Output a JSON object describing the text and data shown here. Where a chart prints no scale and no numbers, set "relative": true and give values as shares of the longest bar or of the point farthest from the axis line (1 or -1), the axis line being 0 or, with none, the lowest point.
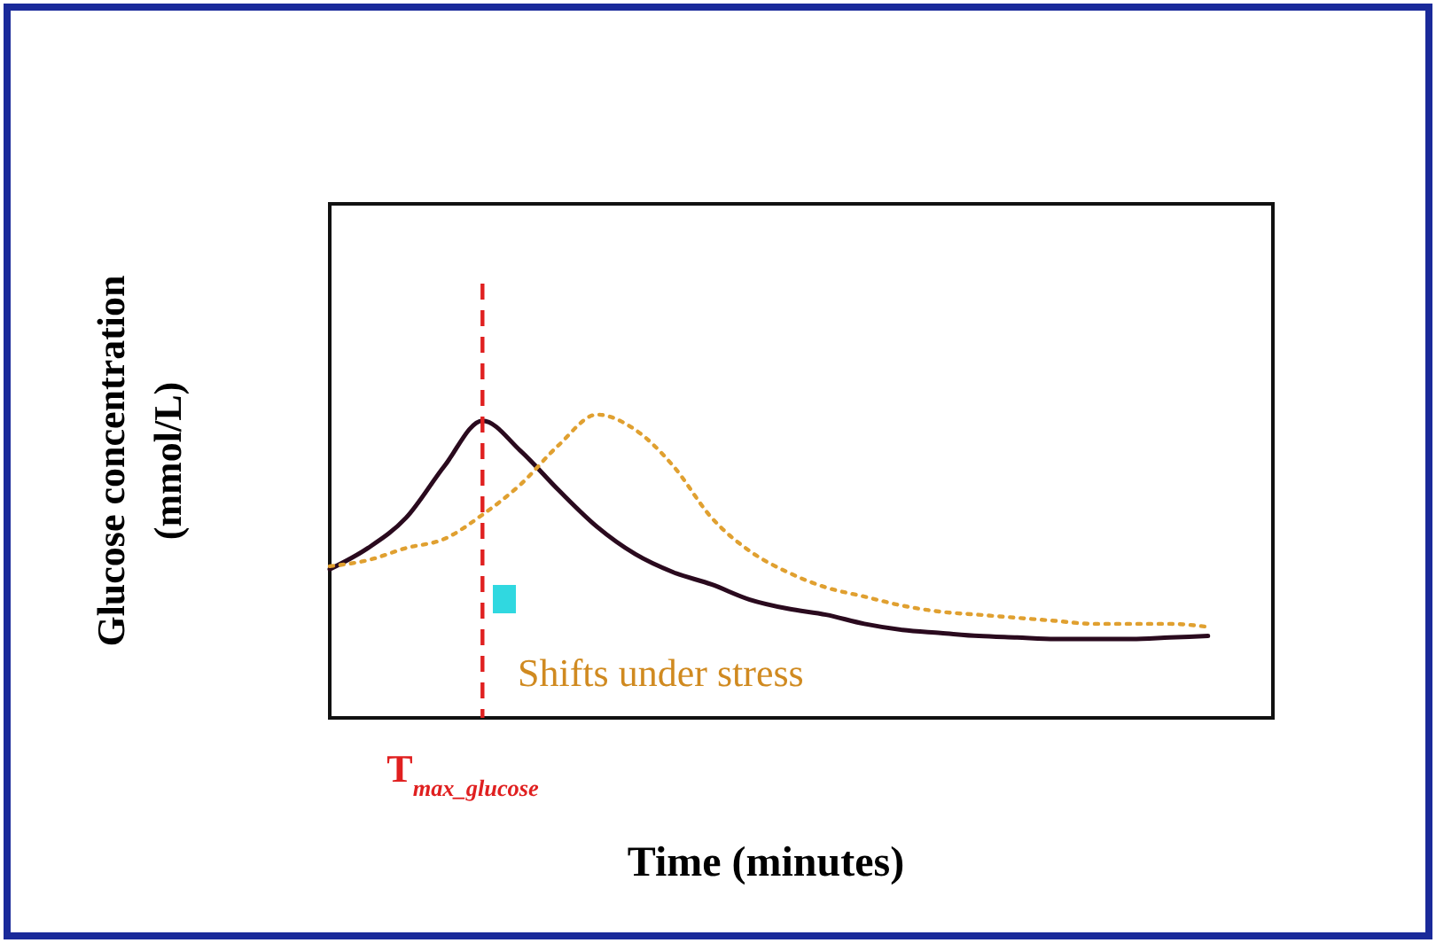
{
  "chart_data": {
    "type": "line",
    "relative": true,
    "xlabel": "Time (minutes)",
    "ylabel": "Glucose concentration\n(mmol/L)",
    "categories": [
      null,
      null,
      null,
      null,
      null,
      null,
      null,
      null,
      null,
      null,
      null,
      null,
      null,
      null,
      null,
      null,
      null,
      null,
      null,
      null,
      null,
      null,
      null,
      null,
      null,
      null
    ],
    "series": [
      {
        "color": "#2a0a1e",
        "line_style": "solid",
        "values": [
          0.49,
          0.56,
          0.66,
          0.83,
          0.98,
          0.88,
          0.75,
          0.63,
          0.54,
          0.48,
          0.44,
          0.39,
          0.36,
          0.34,
          0.31,
          0.29,
          0.28,
          0.27,
          0.265,
          0.26,
          0.26,
          0.26,
          0.265,
          0.27,
          null,
          null
        ]
      },
      {
        "color": "#e0a030",
        "line_style": "dotted",
        "values": [
          0.5,
          0.52,
          0.56,
          0.59,
          0.67,
          0.77,
          0.9,
          1,
          0.95,
          0.83,
          0.66,
          0.55,
          0.48,
          0.43,
          0.4,
          0.37,
          0.35,
          0.34,
          0.33,
          0.32,
          0.31,
          0.31,
          0.31,
          0.3,
          null,
          null
        ]
      }
    ],
    "annotations": [
      "Shifts under stress",
      "T$_{max_glucose}$"
    ]
  }
}
